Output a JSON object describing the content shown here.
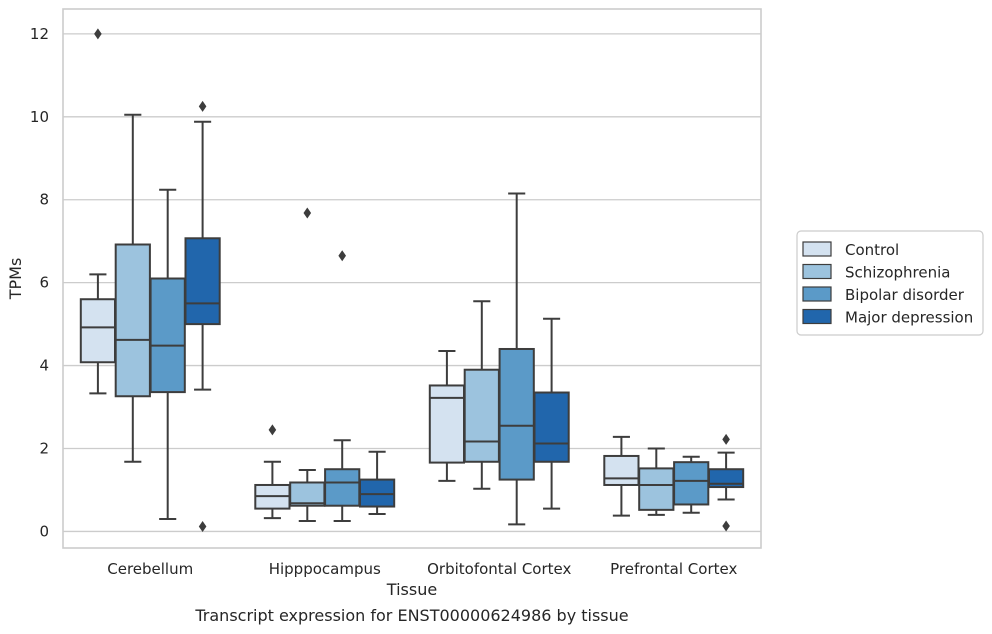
{
  "chart_data": {
    "type": "box",
    "title": "",
    "caption": "Transcript expression for ENST00000624986 by tissue",
    "xlabel": "Tissue",
    "ylabel": "TPMs",
    "ylim": [
      -0.4,
      12.6
    ],
    "yticks": [
      0,
      2,
      4,
      6,
      8,
      10,
      12
    ],
    "grid": "horizontal",
    "legend_position": "right",
    "categories": [
      "Cerebellum",
      "Hipppocampus",
      "Orbitofontal Cortex",
      "Prefrontal Cortex"
    ],
    "series": [
      {
        "name": "Control",
        "color": "#d4e2f0",
        "boxes": [
          {
            "whislo": 3.33,
            "q1": 4.08,
            "med": 4.92,
            "q3": 5.6,
            "whishi": 6.2,
            "fliers": [
              12.0
            ]
          },
          {
            "whislo": 0.32,
            "q1": 0.55,
            "med": 0.85,
            "q3": 1.12,
            "whishi": 1.68,
            "fliers": [
              2.45
            ]
          },
          {
            "whislo": 1.22,
            "q1": 1.66,
            "med": 3.22,
            "q3": 3.52,
            "whishi": 4.35,
            "fliers": []
          },
          {
            "whislo": 0.38,
            "q1": 1.12,
            "med": 1.28,
            "q3": 1.82,
            "whishi": 2.28,
            "fliers": []
          }
        ]
      },
      {
        "name": "Schizophrenia",
        "color": "#9cc3de",
        "boxes": [
          {
            "whislo": 1.68,
            "q1": 3.26,
            "med": 4.62,
            "q3": 6.92,
            "whishi": 10.05,
            "fliers": []
          },
          {
            "whislo": 0.25,
            "q1": 0.62,
            "med": 0.68,
            "q3": 1.18,
            "whishi": 1.48,
            "fliers": [
              7.68
            ]
          },
          {
            "whislo": 1.03,
            "q1": 1.68,
            "med": 2.17,
            "q3": 3.9,
            "whishi": 5.55,
            "fliers": []
          },
          {
            "whislo": 0.4,
            "q1": 0.52,
            "med": 1.12,
            "q3": 1.52,
            "whishi": 2.0,
            "fliers": []
          }
        ]
      },
      {
        "name": "Bipolar disorder",
        "color": "#5b9ac8",
        "boxes": [
          {
            "whislo": 0.3,
            "q1": 3.36,
            "med": 4.48,
            "q3": 6.1,
            "whishi": 8.24,
            "fliers": []
          },
          {
            "whislo": 0.25,
            "q1": 0.62,
            "med": 1.18,
            "q3": 1.5,
            "whishi": 2.2,
            "fliers": [
              6.65
            ]
          },
          {
            "whislo": 0.17,
            "q1": 1.25,
            "med": 2.55,
            "q3": 4.4,
            "whishi": 8.15,
            "fliers": []
          },
          {
            "whislo": 0.45,
            "q1": 0.65,
            "med": 1.22,
            "q3": 1.67,
            "whishi": 1.8,
            "fliers": []
          }
        ]
      },
      {
        "name": "Major depression",
        "color": "#2166ac",
        "boxes": [
          {
            "whislo": 3.42,
            "q1": 5.0,
            "med": 5.5,
            "q3": 7.07,
            "whishi": 9.88,
            "fliers": [
              10.25,
              0.12
            ]
          },
          {
            "whislo": 0.42,
            "q1": 0.6,
            "med": 0.9,
            "q3": 1.25,
            "whishi": 1.92,
            "fliers": []
          },
          {
            "whislo": 0.55,
            "q1": 1.68,
            "med": 2.12,
            "q3": 3.35,
            "whishi": 5.13,
            "fliers": []
          },
          {
            "whislo": 0.77,
            "q1": 1.07,
            "med": 1.15,
            "q3": 1.5,
            "whishi": 1.9,
            "fliers": [
              2.22,
              0.13
            ]
          }
        ]
      }
    ]
  }
}
